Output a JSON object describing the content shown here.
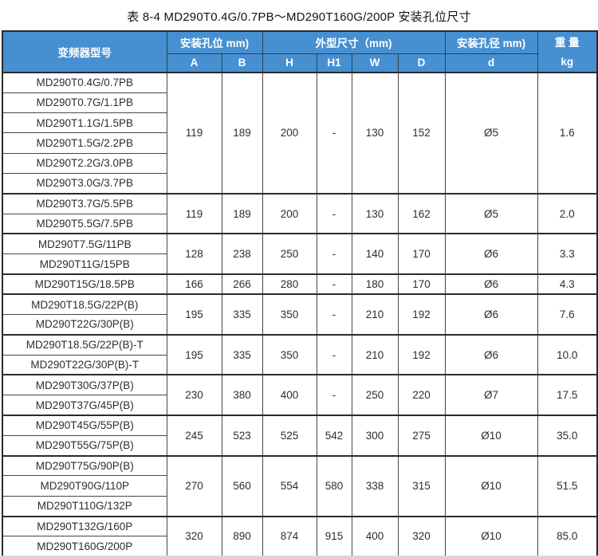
{
  "page": {
    "title": "表 8-4  MD290T0.4G/0.7PB～MD290T160G/200P 安装孔位尺寸"
  },
  "colors": {
    "header_bg": "#4690d2",
    "header_text": "#ffffff",
    "border_strong": "#2b2b2b",
    "border_thin": "#474747",
    "body_text": "#2e2e2e"
  },
  "table": {
    "header": {
      "model": "变频器型号",
      "mount_group": "安装孔位 mm)",
      "dim_group": "外型尺寸（mm)",
      "hole_group": "安装孔径 mm)",
      "weight_top": "重 量",
      "weight_unit": "kg",
      "cols": {
        "a": "A",
        "b": "B",
        "h": "H",
        "h1": "H1",
        "w": "W",
        "d_dim": "D",
        "dia": "d"
      }
    },
    "value_keys": [
      "A",
      "B",
      "H",
      "H1",
      "W",
      "D",
      "d",
      "kg"
    ],
    "groups": [
      {
        "models": [
          "MD290T0.4G/0.7PB",
          "MD290T0.7G/1.1PB",
          "MD290T1.1G/1.5PB",
          "MD290T1.5G/2.2PB",
          "MD290T2.2G/3.0PB",
          "MD290T3.0G/3.7PB"
        ],
        "values": {
          "A": "119",
          "B": "189",
          "H": "200",
          "H1": "-",
          "W": "130",
          "D": "152",
          "d": "Ø5",
          "kg": "1.6"
        }
      },
      {
        "models": [
          "MD290T3.7G/5.5PB",
          "MD290T5.5G/7.5PB"
        ],
        "values": {
          "A": "119",
          "B": "189",
          "H": "200",
          "H1": "-",
          "W": "130",
          "D": "162",
          "d": "Ø5",
          "kg": "2.0"
        }
      },
      {
        "models": [
          "MD290T7.5G/11PB",
          "MD290T11G/15PB"
        ],
        "values": {
          "A": "128",
          "B": "238",
          "H": "250",
          "H1": "-",
          "W": "140",
          "D": "170",
          "d": "Ø6",
          "kg": "3.3"
        }
      },
      {
        "models": [
          "MD290T15G/18.5PB"
        ],
        "values": {
          "A": "166",
          "B": "266",
          "H": "280",
          "H1": "-",
          "W": "180",
          "D": "170",
          "d": "Ø6",
          "kg": "4.3"
        }
      },
      {
        "models": [
          "MD290T18.5G/22P(B)",
          "MD290T22G/30P(B)"
        ],
        "values": {
          "A": "195",
          "B": "335",
          "H": "350",
          "H1": "-",
          "W": "210",
          "D": "192",
          "d": "Ø6",
          "kg": "7.6"
        }
      },
      {
        "models": [
          "MD290T18.5G/22P(B)-T",
          "MD290T22G/30P(B)-T"
        ],
        "values": {
          "A": "195",
          "B": "335",
          "H": "350",
          "H1": "-",
          "W": "210",
          "D": "192",
          "d": "Ø6",
          "kg": "10.0"
        }
      },
      {
        "models": [
          "MD290T30G/37P(B)",
          "MD290T37G/45P(B)"
        ],
        "values": {
          "A": "230",
          "B": "380",
          "H": "400",
          "H1": "-",
          "W": "250",
          "D": "220",
          "d": "Ø7",
          "kg": "17.5"
        }
      },
      {
        "models": [
          "MD290T45G/55P(B)",
          "MD290T55G/75P(B)"
        ],
        "values": {
          "A": "245",
          "B": "523",
          "H": "525",
          "H1": "542",
          "W": "300",
          "D": "275",
          "d": "Ø10",
          "kg": "35.0"
        }
      },
      {
        "models": [
          "MD290T75G/90P(B)",
          "MD290T90G/110P",
          "MD290T110G/132P"
        ],
        "values": {
          "A": "270",
          "B": "560",
          "H": "554",
          "H1": "580",
          "W": "338",
          "D": "315",
          "d": "Ø10",
          "kg": "51.5"
        }
      },
      {
        "models": [
          "MD290T132G/160P",
          "MD290T160G/200P"
        ],
        "values": {
          "A": "320",
          "B": "890",
          "H": "874",
          "H1": "915",
          "W": "400",
          "D": "320",
          "d": "Ø10",
          "kg": "85.0"
        }
      }
    ]
  }
}
